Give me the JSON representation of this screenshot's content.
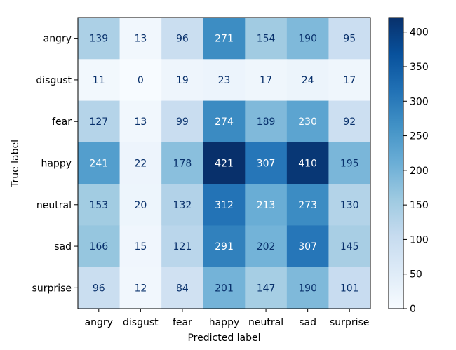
{
  "chart_data": {
    "type": "heatmap",
    "title": "",
    "xlabel": "Predicted label",
    "ylabel": "True label",
    "x_categories": [
      "angry",
      "disgust",
      "fear",
      "happy",
      "neutral",
      "sad",
      "surprise"
    ],
    "y_categories": [
      "angry",
      "disgust",
      "fear",
      "happy",
      "neutral",
      "sad",
      "surprise"
    ],
    "matrix": [
      [
        139,
        13,
        96,
        271,
        154,
        190,
        95
      ],
      [
        11,
        0,
        19,
        23,
        17,
        24,
        17
      ],
      [
        127,
        13,
        99,
        274,
        189,
        230,
        92
      ],
      [
        241,
        22,
        178,
        421,
        307,
        410,
        195
      ],
      [
        153,
        20,
        132,
        312,
        213,
        273,
        130
      ],
      [
        166,
        15,
        121,
        291,
        202,
        307,
        145
      ],
      [
        96,
        12,
        84,
        201,
        147,
        190,
        101
      ]
    ],
    "colormap": "Blues",
    "value_range": [
      0,
      421
    ],
    "colorbar_ticks": [
      0,
      50,
      100,
      150,
      200,
      250,
      300,
      350,
      400
    ],
    "colorbar_tick_labels": [
      "0",
      "50",
      "100",
      "150",
      "200",
      "250",
      "300",
      "350",
      "400"
    ],
    "grid": false,
    "colorbar_position": "right"
  }
}
